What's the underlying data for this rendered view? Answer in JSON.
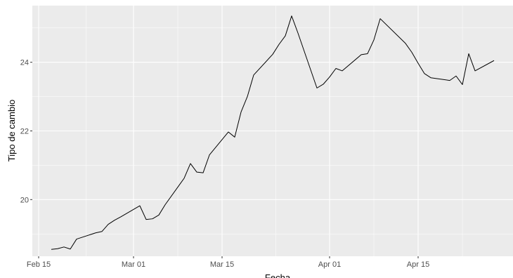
{
  "chart_data": {
    "type": "line",
    "xlabel": "Fecha",
    "ylabel": "Tipo de cambio",
    "grid": true,
    "xlim": [
      "2020-02-14",
      "2020-04-30"
    ],
    "ylim": [
      18.35,
      25.65
    ],
    "x_ticks": [
      {
        "date": "2020-02-15",
        "label": "Feb 15"
      },
      {
        "date": "2020-03-01",
        "label": "Mar 01"
      },
      {
        "date": "2020-03-15",
        "label": "Mar 15"
      },
      {
        "date": "2020-04-01",
        "label": "Apr 01"
      },
      {
        "date": "2020-04-15",
        "label": "Apr 15"
      }
    ],
    "y_ticks": [
      {
        "value": 20,
        "label": "20"
      },
      {
        "value": 22,
        "label": "22"
      },
      {
        "value": 24,
        "label": "24"
      }
    ],
    "colors": {
      "panel": "#ebebeb",
      "grid": "#ffffff",
      "line": "#000000"
    },
    "series": [
      {
        "x": [
          "2020-02-17",
          "2020-02-18",
          "2020-02-19",
          "2020-02-20",
          "2020-02-21",
          "2020-02-24",
          "2020-02-25",
          "2020-02-26",
          "2020-02-27",
          "2020-02-28",
          "2020-03-02",
          "2020-03-03",
          "2020-03-04",
          "2020-03-05",
          "2020-03-06",
          "2020-03-09",
          "2020-03-10",
          "2020-03-11",
          "2020-03-12",
          "2020-03-13",
          "2020-03-16",
          "2020-03-17",
          "2020-03-18",
          "2020-03-19",
          "2020-03-20",
          "2020-03-23",
          "2020-03-24",
          "2020-03-25",
          "2020-03-26",
          "2020-03-27",
          "2020-03-30",
          "2020-03-31",
          "2020-04-01",
          "2020-04-02",
          "2020-04-03",
          "2020-04-06",
          "2020-04-07",
          "2020-04-08",
          "2020-04-09",
          "2020-04-13",
          "2020-04-14",
          "2020-04-15",
          "2020-04-16",
          "2020-04-17",
          "2020-04-20",
          "2020-04-21",
          "2020-04-22",
          "2020-04-23",
          "2020-04-24",
          "2020-04-27"
        ],
        "values": [
          18.55,
          18.57,
          18.62,
          18.56,
          18.85,
          19.03,
          19.07,
          19.28,
          19.4,
          19.5,
          19.82,
          19.42,
          19.44,
          19.55,
          19.85,
          20.62,
          21.05,
          20.8,
          20.78,
          21.3,
          21.97,
          21.82,
          22.55,
          23.0,
          23.63,
          24.23,
          24.52,
          24.77,
          25.35,
          24.85,
          23.25,
          23.36,
          23.57,
          23.82,
          23.75,
          24.22,
          24.25,
          24.65,
          25.27,
          24.55,
          24.29,
          23.97,
          23.67,
          23.55,
          23.47,
          23.6,
          23.35,
          24.25,
          23.75,
          24.05
        ]
      }
    ]
  }
}
